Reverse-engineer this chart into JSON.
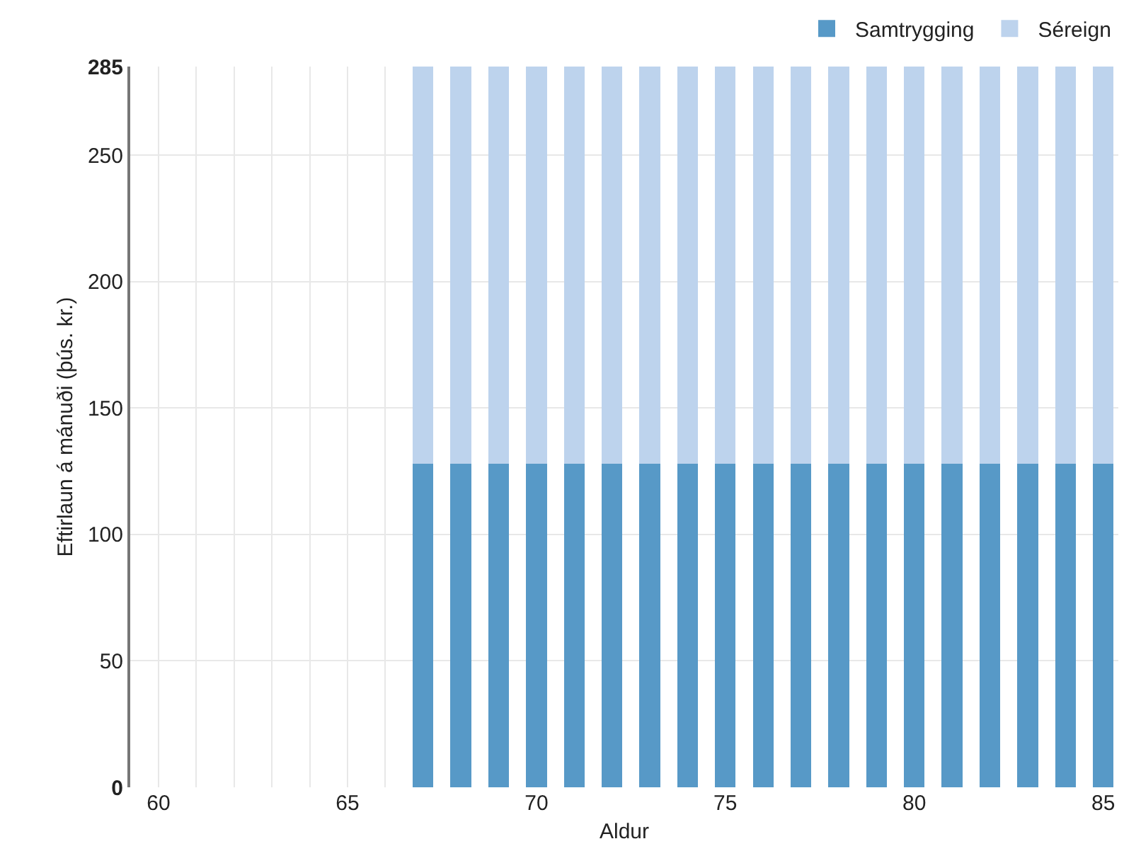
{
  "chart_data": {
    "type": "bar",
    "stacked": true,
    "xlabel": "Aldur",
    "ylabel": "Eftirlaun á mánuði (þús. kr.)",
    "x": [
      67,
      68,
      69,
      70,
      71,
      72,
      73,
      74,
      75,
      76,
      77,
      78,
      79,
      80,
      81,
      82,
      83,
      84,
      85
    ],
    "series": [
      {
        "name": "Samtrygging",
        "color": "#5799c7",
        "values": [
          128,
          128,
          128,
          128,
          128,
          128,
          128,
          128,
          128,
          128,
          128,
          128,
          128,
          128,
          128,
          128,
          128,
          128,
          128
        ]
      },
      {
        "name": "Séreign",
        "color": "#bdd3ed",
        "values": [
          157,
          157,
          157,
          157,
          157,
          157,
          157,
          157,
          157,
          157,
          157,
          157,
          157,
          157,
          157,
          157,
          157,
          157,
          157
        ]
      }
    ],
    "xlim": [
      59.25,
      85.4
    ],
    "xticks": [
      60,
      {
        "value": 61,
        "label": null
      },
      {
        "value": 62,
        "label": null
      },
      {
        "value": 63,
        "label": null
      },
      {
        "value": 64,
        "label": null
      },
      65,
      {
        "value": 66,
        "label": null
      },
      70,
      75,
      80,
      85
    ],
    "ylim": [
      0,
      285
    ],
    "yticks": [
      0,
      50,
      100,
      150,
      200,
      250,
      285
    ],
    "grid": true,
    "legend": "top right"
  }
}
